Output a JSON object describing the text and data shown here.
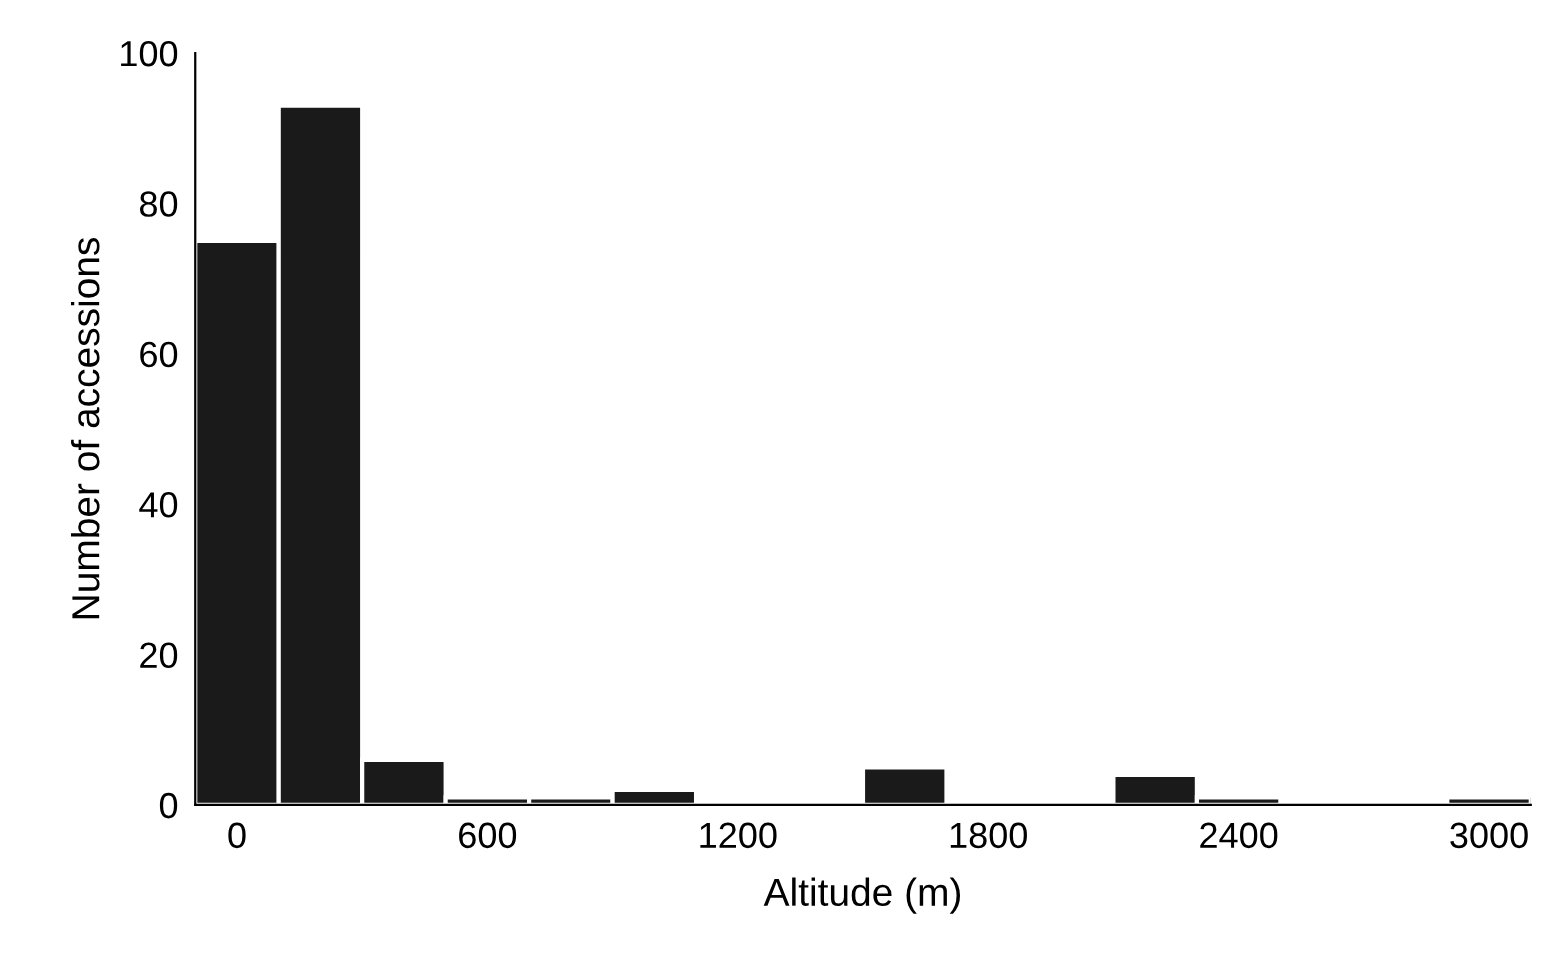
{
  "chart_data": {
    "type": "histogram",
    "xlabel": "Altitude (m)",
    "ylabel": "Number of accessions",
    "bins": [
      -100,
      100,
      300,
      500,
      700,
      900,
      1100,
      1300,
      1500,
      1700,
      1900,
      2100,
      2300,
      2500,
      2700,
      2900,
      3100
    ],
    "values": [
      75,
      93,
      6,
      1,
      1,
      2,
      0,
      0,
      5,
      0,
      0,
      4,
      1,
      0,
      0,
      1
    ],
    "color": "#1a1a1a",
    "xlim": [
      -100,
      3100
    ],
    "xticks": [
      0,
      600,
      1200,
      1800,
      2400,
      3000
    ],
    "ylim": [
      0,
      100
    ],
    "yticks": [
      0,
      20,
      40,
      60,
      80,
      100
    ],
    "grid": false
  }
}
